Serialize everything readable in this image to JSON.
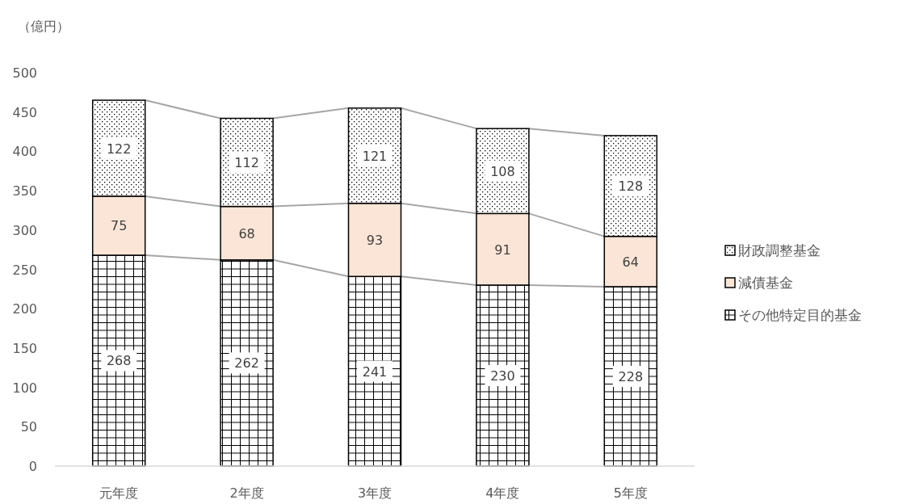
{
  "chart_data": {
    "type": "bar",
    "stacked": true,
    "ylabel": "（億円）",
    "categories": [
      "元年度",
      "2年度",
      "3年度",
      "4年度",
      "5年度"
    ],
    "series": [
      {
        "name": "その他特定目的基金",
        "color": "#000000",
        "values": [
          268,
          262,
          241,
          230,
          228
        ]
      },
      {
        "name": "減債基金",
        "color": "#fbe5d6",
        "values": [
          75,
          68,
          93,
          91,
          64
        ]
      },
      {
        "name": "財政調整基金",
        "color": "#000000",
        "values": [
          122,
          112,
          121,
          108,
          128
        ]
      }
    ],
    "ylim": [
      0,
      500
    ],
    "yticks": [
      0,
      50,
      100,
      150,
      200,
      250,
      300,
      350,
      400,
      450,
      500
    ],
    "data_labels": true,
    "legend": "right",
    "grid": false
  }
}
